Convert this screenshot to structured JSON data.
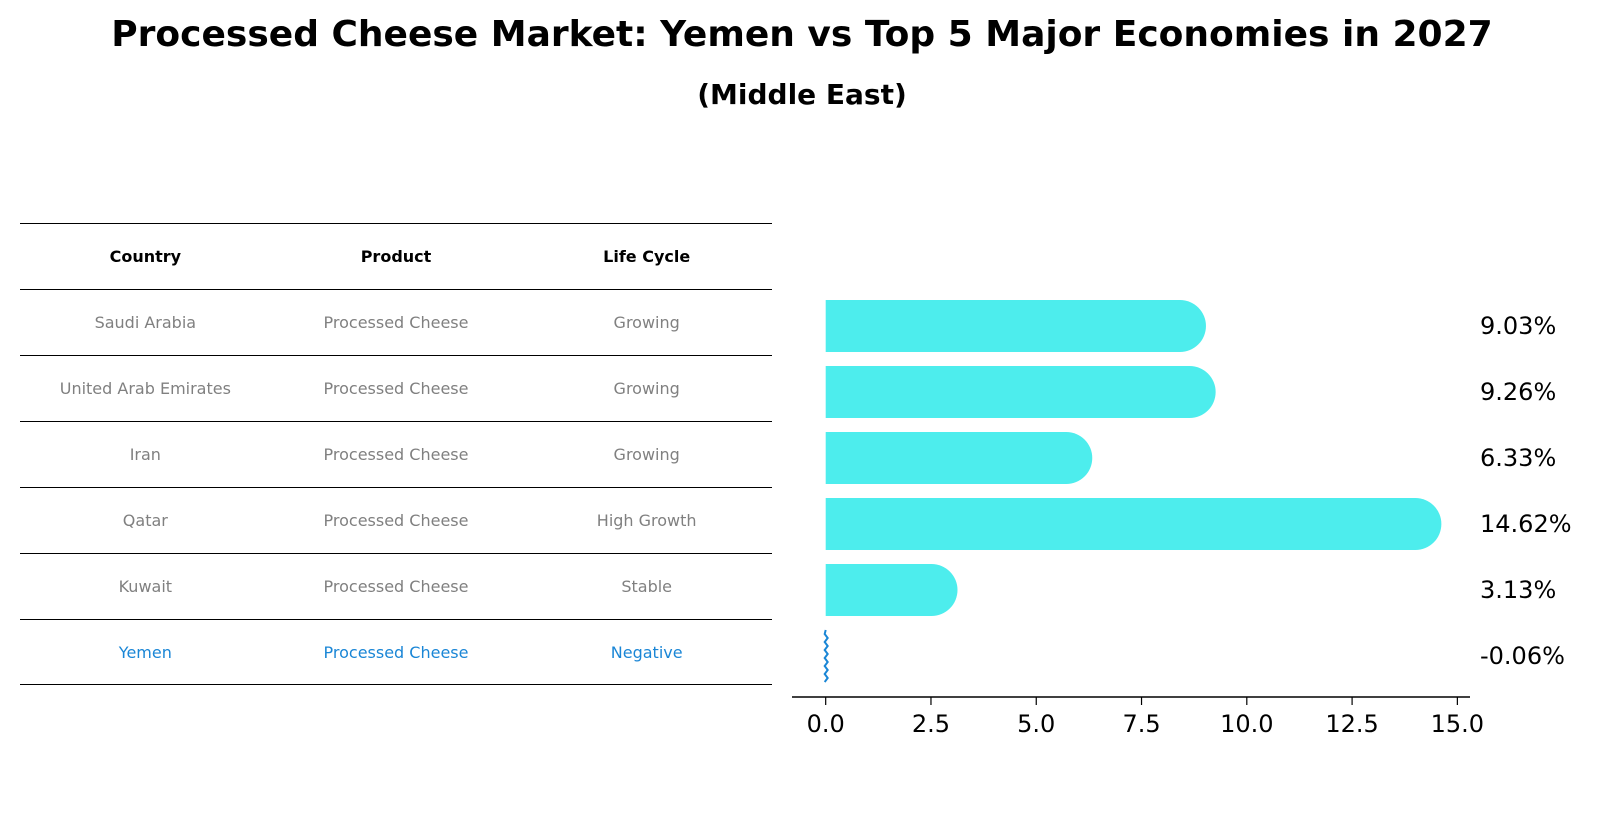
{
  "title": "Processed Cheese Market: Yemen vs Top 5 Major Economies in 2027",
  "subtitle": "(Middle East)",
  "table": {
    "headers": [
      "Country",
      "Product",
      "Life Cycle"
    ],
    "rows": [
      [
        "Saudi Arabia",
        "Processed Cheese",
        "Growing"
      ],
      [
        "United Arab Emirates",
        "Processed Cheese",
        "Growing"
      ],
      [
        "Iran",
        "Processed Cheese",
        "Growing"
      ],
      [
        "Qatar",
        "Processed Cheese",
        "High Growth"
      ],
      [
        "Kuwait",
        "Processed Cheese",
        "Stable"
      ],
      [
        "Yemen",
        "Processed Cheese",
        "Negative"
      ]
    ],
    "highlight_row": 5
  },
  "colors": {
    "bar": "#4deded",
    "highlight": "#1a86d6",
    "muted": "#808080"
  },
  "chart_data": {
    "type": "bar",
    "orientation": "horizontal",
    "categories": [
      "Saudi Arabia",
      "United Arab Emirates",
      "Iran",
      "Qatar",
      "Kuwait",
      "Yemen"
    ],
    "values": [
      9.03,
      9.26,
      6.33,
      14.62,
      3.13,
      -0.06
    ],
    "labels": [
      "9.03%",
      "9.26%",
      "6.33%",
      "14.62%",
      "3.13%",
      "-0.06%"
    ],
    "xlim": [
      -0.8,
      15.3
    ],
    "xticks": [
      0.0,
      2.5,
      5.0,
      7.5,
      10.0,
      12.5,
      15.0
    ],
    "xtick_labels": [
      "0.0",
      "2.5",
      "5.0",
      "7.5",
      "10.0",
      "12.5",
      "15.0"
    ],
    "grid": false
  }
}
